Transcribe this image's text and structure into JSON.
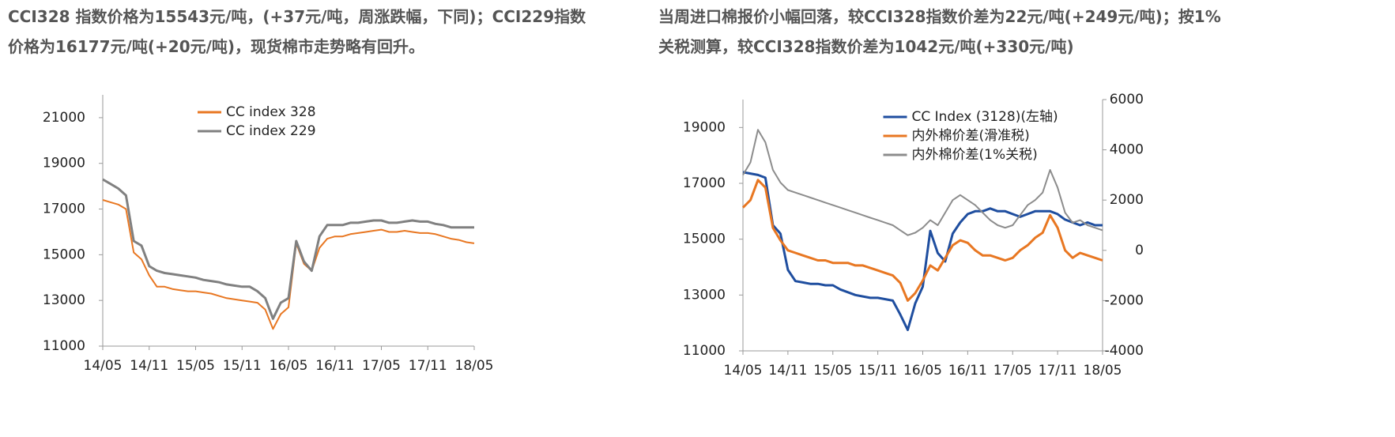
{
  "description_left": [
    "CCI328  指数价格为15543元/吨，(+37元/吨，周涨跌幅，下同)；CCI229指数",
    "价格为16177元/吨(+20元/吨)，现货棉市走势略有回升。"
  ],
  "description_right": [
    "当周进口棉报价小幅回落，较CCI328指数价差为22元/吨(+249元/吨)；按1%",
    "关税测算，较CCI328指数价差为1042元/吨(+330元/吨)"
  ],
  "chart_data": [
    {
      "type": "line",
      "legend": "upper center",
      "categories": [
        "14/05",
        null,
        null,
        null,
        null,
        null,
        "14/11",
        null,
        null,
        null,
        null,
        null,
        "15/05",
        null,
        null,
        null,
        null,
        null,
        "15/11",
        null,
        null,
        null,
        null,
        null,
        "16/05",
        null,
        null,
        null,
        null,
        null,
        "16/11",
        null,
        null,
        null,
        null,
        null,
        "17/05",
        null,
        null,
        null,
        null,
        null,
        "17/11",
        null,
        null,
        null,
        null,
        null,
        "18/05"
      ],
      "ylim": [
        11000,
        22000
      ],
      "yticks": [
        11000,
        13000,
        15000,
        17000,
        19000,
        21000
      ],
      "series": [
        {
          "name": "CC index 328",
          "color": "#e87722",
          "values": [
            17400,
            17300,
            17200,
            17000,
            15100,
            14800,
            14100,
            13600,
            13600,
            13500,
            13450,
            13400,
            13400,
            13350,
            13300,
            13200,
            13100,
            13050,
            13000,
            12950,
            12900,
            12600,
            11750,
            12400,
            12700,
            15500,
            14600,
            14300,
            15300,
            15700,
            15800,
            15800,
            15900,
            15950,
            16000,
            16050,
            16100,
            16000,
            16000,
            16050,
            16000,
            15950,
            15950,
            15900,
            15800,
            15700,
            15650,
            15550,
            15500
          ]
        },
        {
          "name": "CC index 229",
          "color": "#808080",
          "values": [
            18300,
            18100,
            17900,
            17600,
            15600,
            15400,
            14500,
            14300,
            14200,
            14150,
            14100,
            14050,
            14000,
            13900,
            13850,
            13800,
            13700,
            13650,
            13600,
            13600,
            13400,
            13100,
            12200,
            12900,
            13100,
            15600,
            14700,
            14300,
            15800,
            16300,
            16300,
            16300,
            16400,
            16400,
            16450,
            16500,
            16500,
            16400,
            16400,
            16450,
            16500,
            16450,
            16450,
            16350,
            16300,
            16200,
            16200,
            16200,
            16200
          ]
        }
      ]
    },
    {
      "type": "line",
      "legend": "upper center",
      "categories": [
        "14/05",
        null,
        null,
        null,
        null,
        null,
        "14/11",
        null,
        null,
        null,
        null,
        null,
        "15/05",
        null,
        null,
        null,
        null,
        null,
        "15/11",
        null,
        null,
        null,
        null,
        null,
        "16/05",
        null,
        null,
        null,
        null,
        null,
        "16/11",
        null,
        null,
        null,
        null,
        null,
        "17/05",
        null,
        null,
        null,
        null,
        null,
        "17/11",
        null,
        null,
        null,
        null,
        null,
        "18/05"
      ],
      "ylim": [
        11000,
        20000
      ],
      "yticks": [
        11000,
        13000,
        15000,
        17000,
        19000
      ],
      "y2lim": [
        -4000,
        6000
      ],
      "y2ticks": [
        -4000,
        -2000,
        0,
        2000,
        4000,
        6000
      ],
      "series": [
        {
          "name": "CC Index (3128)(左轴)",
          "color": "#1f4e9f",
          "values": [
            17400,
            17350,
            17300,
            17200,
            15500,
            15200,
            13900,
            13500,
            13450,
            13400,
            13400,
            13350,
            13350,
            13200,
            13100,
            13000,
            12950,
            12900,
            12900,
            12850,
            12800,
            12300,
            11750,
            12700,
            13300,
            15300,
            14500,
            14200,
            15200,
            15600,
            15900,
            16000,
            16000,
            16100,
            16000,
            16000,
            15900,
            15800,
            15900,
            16000,
            16000,
            16000,
            15900,
            15700,
            15600,
            15500,
            15600,
            15500,
            15500
          ]
        },
        {
          "name": "内外棉价差(滑准税)",
          "color": "#e87722",
          "axis": "y2",
          "values": [
            1700,
            2000,
            2800,
            2500,
            900,
            400,
            0,
            -100,
            -200,
            -300,
            -400,
            -400,
            -500,
            -500,
            -500,
            -600,
            -600,
            -700,
            -800,
            -900,
            -1000,
            -1300,
            -2000,
            -1700,
            -1200,
            -600,
            -800,
            -300,
            200,
            400,
            300,
            0,
            -200,
            -200,
            -300,
            -400,
            -300,
            0,
            200,
            500,
            700,
            1400,
            900,
            0,
            -300,
            -100,
            -200,
            -300,
            -400
          ]
        },
        {
          "name": "内外棉价差(1%关税)",
          "color": "#8c8c8c",
          "axis": "y2",
          "values": [
            3000,
            3500,
            4800,
            4300,
            3200,
            2700,
            2400,
            2300,
            2200,
            2100,
            2000,
            1900,
            1800,
            1700,
            1600,
            1500,
            1400,
            1300,
            1200,
            1100,
            1000,
            800,
            600,
            700,
            900,
            1200,
            1000,
            1500,
            2000,
            2200,
            2000,
            1800,
            1500,
            1200,
            1000,
            900,
            1000,
            1400,
            1800,
            2000,
            2300,
            3200,
            2500,
            1500,
            1100,
            1200,
            1000,
            900,
            800
          ]
        }
      ]
    }
  ]
}
